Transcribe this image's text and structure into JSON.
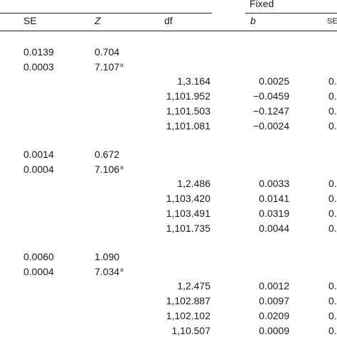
{
  "header": {
    "group_label": "Fixed",
    "columns": [
      "SE",
      "Z",
      "df",
      "b",
      "SE"
    ]
  },
  "blocks": [
    {
      "top_rows": [
        {
          "se": "0.0139",
          "z": "0.704",
          "sup": ""
        },
        {
          "se": "0.0003",
          "z": "7.107",
          "sup": "a"
        }
      ],
      "bottom_rows": [
        {
          "df": "1,3.164",
          "b": "0.0025",
          "se2": "0."
        },
        {
          "df": "1,101.952",
          "b": "−0.0459",
          "se2": "0."
        },
        {
          "df": "1,101.503",
          "b": "−0.1247",
          "se2": "0."
        },
        {
          "df": "1,101.081",
          "b": "−0.0024",
          "se2": "0."
        }
      ]
    },
    {
      "top_rows": [
        {
          "se": "0.0014",
          "z": "0.672",
          "sup": ""
        },
        {
          "se": "0.0004",
          "z": "7.106",
          "sup": "a"
        }
      ],
      "bottom_rows": [
        {
          "df": "1,2.486",
          "b": "0.0033",
          "se2": "0."
        },
        {
          "df": "1,103.420",
          "b": "0.0141",
          "se2": "0."
        },
        {
          "df": "1,103.491",
          "b": "0.0319",
          "se2": "0."
        },
        {
          "df": "1,101.735",
          "b": "0.0044",
          "se2": "0."
        }
      ]
    },
    {
      "top_rows": [
        {
          "se": "0.0060",
          "z": "1.090",
          "sup": ""
        },
        {
          "se": "0.0004",
          "z": "7.034",
          "sup": "a"
        }
      ],
      "bottom_rows": [
        {
          "df": "1,2.475",
          "b": "0.0012",
          "se2": "0."
        },
        {
          "df": "1,102.887",
          "b": "0.0097",
          "se2": "0."
        },
        {
          "df": "1,102.102",
          "b": "0.0209",
          "se2": "0."
        },
        {
          "df": "1,10.507",
          "b": "0.0009",
          "se2": "0."
        }
      ]
    }
  ]
}
